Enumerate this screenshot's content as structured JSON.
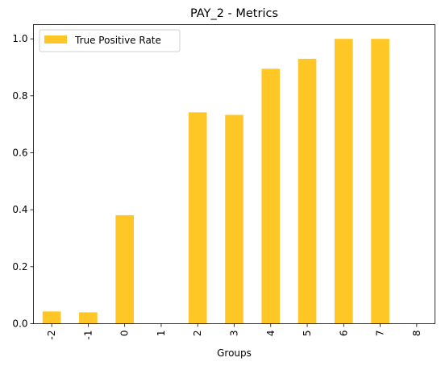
{
  "chart_data": {
    "type": "bar",
    "title": "PAY_2 - Metrics",
    "xlabel": "Groups",
    "ylabel": "",
    "categories": [
      "-2",
      "-1",
      "0",
      "1",
      "2",
      "3",
      "4",
      "5",
      "6",
      "7",
      "8"
    ],
    "series": [
      {
        "name": "True Positive Rate",
        "values": [
          0.043,
          0.04,
          0.381,
          0.0,
          0.742,
          0.733,
          0.895,
          0.93,
          1.0,
          1.0,
          0.0
        ],
        "color": "#FFC726"
      }
    ],
    "ylim": [
      0,
      1.05
    ],
    "yticks": [
      "0.0",
      "0.2",
      "0.4",
      "0.6",
      "0.8",
      "1.0"
    ],
    "ytick_values": [
      0.0,
      0.2,
      0.4,
      0.6,
      0.8,
      1.0
    ],
    "grid": false,
    "legend_position": "top-left"
  }
}
